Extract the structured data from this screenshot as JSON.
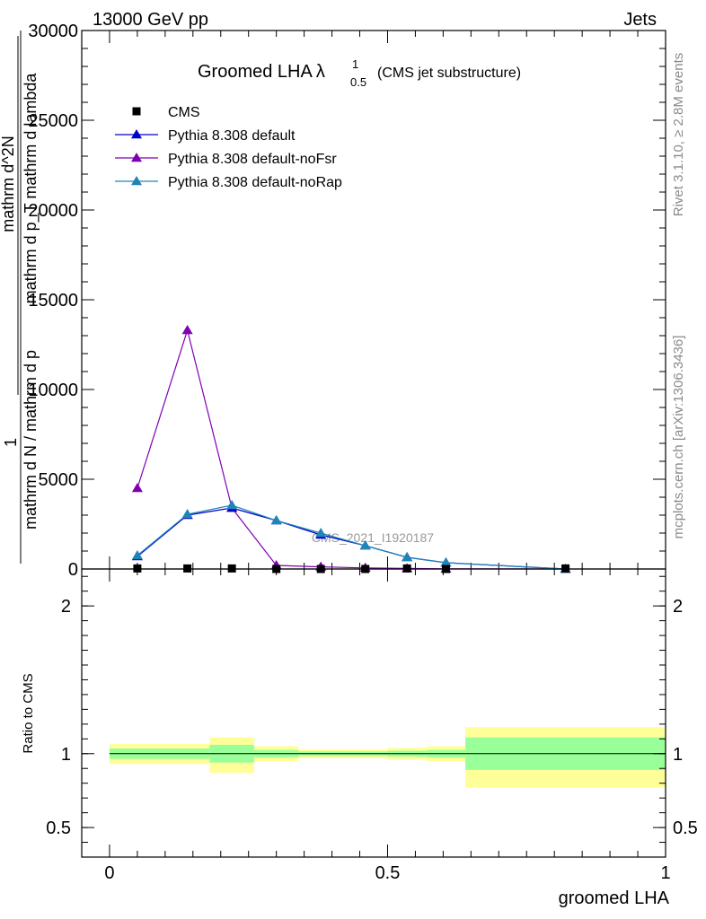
{
  "header": {
    "energy_label": "13000 GeV pp",
    "process_label": "Jets"
  },
  "side_text": {
    "rivet": "Rivet 3.1.10, ≥ 2.8M events",
    "mcplots": "mcplots.cern.ch [arXiv:1306.3436]"
  },
  "watermark": "CMS_2021_I1920187",
  "chart_data": [
    {
      "type": "line",
      "title": "Groomed LHA",
      "title_symbol": "λ",
      "title_sup": "1",
      "title_sub": "0.5",
      "title_suffix": "(CMS jet substructure)",
      "ylabel_lines": [
        "1",
        "mathrm d N / mathrm d p",
        "mathrm d^2N",
        "mathrm d p_T mathrm d lambda"
      ],
      "ylim": [
        0,
        30000
      ],
      "xlim": [
        -0.05,
        1.0
      ],
      "yticks": [
        0,
        5000,
        10000,
        15000,
        20000,
        25000,
        30000
      ],
      "ytick_labels": [
        "0",
        "5000",
        "10000",
        "15000",
        "20000",
        "25000",
        "30000"
      ],
      "legend_position": "top-left",
      "x": [
        0.05,
        0.14,
        0.22,
        0.3,
        0.38,
        0.46,
        0.535,
        0.605,
        0.82
      ],
      "series": [
        {
          "name": "CMS",
          "marker": "square",
          "color": "#000000",
          "values": [
            30,
            30,
            30,
            0,
            0,
            0,
            30,
            0,
            30
          ]
        },
        {
          "name": "Pythia 8.308 default",
          "marker": "triangle",
          "color": "#0000cc",
          "values": [
            700,
            3000,
            3400,
            2700,
            1900,
            1300,
            650,
            350,
            0
          ]
        },
        {
          "name": "Pythia 8.308 default-noFsr",
          "marker": "triangle",
          "color": "#7f00b2",
          "values": [
            4500,
            13300,
            3400,
            200,
            120,
            60,
            30,
            10,
            0
          ]
        },
        {
          "name": "Pythia 8.308 default-noRap",
          "marker": "triangle",
          "color": "#1f85b8",
          "values": [
            750,
            3050,
            3550,
            2700,
            2000,
            1300,
            650,
            350,
            0
          ]
        }
      ]
    },
    {
      "type": "area",
      "ylabel": "Ratio to CMS",
      "xlabel": "groomed LHA",
      "xlim": [
        -0.05,
        1.0
      ],
      "ylim": [
        0.3,
        2.25
      ],
      "xticks": [
        0,
        0.5,
        1
      ],
      "xtick_labels": [
        "0",
        "0.5",
        "1"
      ],
      "yticks": [
        0.5,
        1,
        2
      ],
      "ytick_labels": [
        "0.5",
        "1",
        "2"
      ],
      "reference_line": 1,
      "bins": [
        {
          "x0": 0.0,
          "x1": 0.18,
          "inner": [
            0.965,
            1.035
          ],
          "outer": [
            0.93,
            1.065
          ]
        },
        {
          "x0": 0.18,
          "x1": 0.26,
          "inner": [
            0.94,
            1.06
          ],
          "outer": [
            0.87,
            1.11
          ]
        },
        {
          "x0": 0.26,
          "x1": 0.34,
          "inner": [
            0.975,
            1.025
          ],
          "outer": [
            0.95,
            1.05
          ]
        },
        {
          "x0": 0.34,
          "x1": 0.5,
          "inner": [
            0.985,
            1.015
          ],
          "outer": [
            0.97,
            1.03
          ]
        },
        {
          "x0": 0.5,
          "x1": 0.57,
          "inner": [
            0.98,
            1.02
          ],
          "outer": [
            0.96,
            1.04
          ]
        },
        {
          "x0": 0.57,
          "x1": 0.64,
          "inner": [
            0.975,
            1.025
          ],
          "outer": [
            0.95,
            1.05
          ]
        },
        {
          "x0": 0.64,
          "x1": 1.0,
          "inner": [
            0.89,
            1.11
          ],
          "outer": [
            0.77,
            1.18
          ]
        }
      ],
      "band_colors": {
        "inner": "#99ff99",
        "outer": "#ffff99"
      }
    }
  ]
}
